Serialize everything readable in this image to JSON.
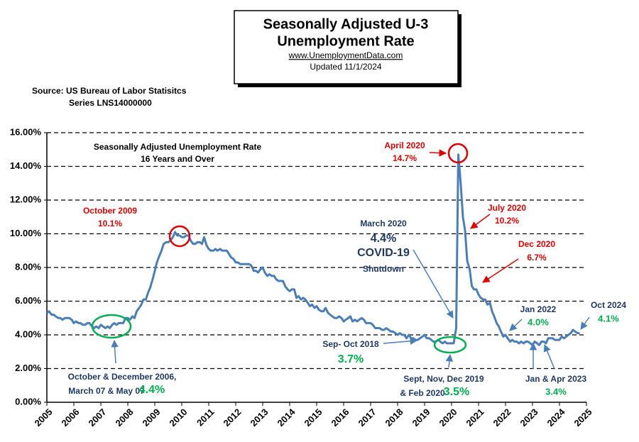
{
  "chart_data": {
    "type": "line",
    "title": [
      "Seasonally Adjusted U-3",
      "Unemployment Rate"
    ],
    "subtitle": [
      "www.UnemploymentData.com",
      "Updated  11/1/2024"
    ],
    "source": [
      "Source:  US  Bureau of Labor Statisitcs",
      "Series LNS14000000"
    ],
    "color": "#4a7ebb",
    "x": [
      2005,
      2005.08,
      2005.17,
      2005.25,
      2005.33,
      2005.42,
      2005.5,
      2005.58,
      2005.67,
      2005.75,
      2005.83,
      2005.92,
      2006,
      2006.08,
      2006.17,
      2006.25,
      2006.33,
      2006.42,
      2006.5,
      2006.58,
      2006.67,
      2006.75,
      2006.83,
      2006.92,
      2007,
      2007.08,
      2007.17,
      2007.25,
      2007.33,
      2007.42,
      2007.5,
      2007.58,
      2007.67,
      2007.75,
      2007.83,
      2007.92,
      2008,
      2008.08,
      2008.17,
      2008.25,
      2008.33,
      2008.42,
      2008.5,
      2008.58,
      2008.67,
      2008.75,
      2008.83,
      2008.92,
      2009,
      2009.08,
      2009.17,
      2009.25,
      2009.33,
      2009.42,
      2009.5,
      2009.58,
      2009.67,
      2009.75,
      2009.83,
      2009.92,
      2010,
      2010.08,
      2010.17,
      2010.25,
      2010.33,
      2010.42,
      2010.5,
      2010.58,
      2010.67,
      2010.75,
      2010.83,
      2010.92,
      2011,
      2011.08,
      2011.17,
      2011.25,
      2011.33,
      2011.42,
      2011.5,
      2011.58,
      2011.67,
      2011.75,
      2011.83,
      2011.92,
      2012,
      2012.08,
      2012.17,
      2012.25,
      2012.33,
      2012.42,
      2012.5,
      2012.58,
      2012.67,
      2012.75,
      2012.83,
      2012.92,
      2013,
      2013.08,
      2013.17,
      2013.25,
      2013.33,
      2013.42,
      2013.5,
      2013.58,
      2013.67,
      2013.75,
      2013.83,
      2013.92,
      2014,
      2014.08,
      2014.17,
      2014.25,
      2014.33,
      2014.42,
      2014.5,
      2014.58,
      2014.67,
      2014.75,
      2014.83,
      2014.92,
      2015,
      2015.08,
      2015.17,
      2015.25,
      2015.33,
      2015.42,
      2015.5,
      2015.58,
      2015.67,
      2015.75,
      2015.83,
      2015.92,
      2016,
      2016.08,
      2016.17,
      2016.25,
      2016.33,
      2016.42,
      2016.5,
      2016.58,
      2016.67,
      2016.75,
      2016.83,
      2016.92,
      2017,
      2017.08,
      2017.17,
      2017.25,
      2017.33,
      2017.42,
      2017.5,
      2017.58,
      2017.67,
      2017.75,
      2017.83,
      2017.92,
      2018,
      2018.08,
      2018.17,
      2018.25,
      2018.33,
      2018.42,
      2018.5,
      2018.58,
      2018.67,
      2018.75,
      2018.83,
      2018.92,
      2019,
      2019.08,
      2019.17,
      2019.25,
      2019.33,
      2019.42,
      2019.5,
      2019.58,
      2019.67,
      2019.75,
      2019.83,
      2019.92,
      2020,
      2020.08,
      2020.17,
      2020.25,
      2020.33,
      2020.42,
      2020.5,
      2020.58,
      2020.67,
      2020.75,
      2020.83,
      2020.92,
      2021,
      2021.08,
      2021.17,
      2021.25,
      2021.33,
      2021.42,
      2021.5,
      2021.58,
      2021.67,
      2021.75,
      2021.83,
      2021.92,
      2022,
      2022.08,
      2022.17,
      2022.25,
      2022.33,
      2022.42,
      2022.5,
      2022.58,
      2022.67,
      2022.75,
      2022.83,
      2022.92,
      2023,
      2023.08,
      2023.17,
      2023.25,
      2023.33,
      2023.42,
      2023.5,
      2023.58,
      2023.67,
      2023.75,
      2023.83,
      2023.92,
      2024,
      2024.08,
      2024.17,
      2024.25,
      2024.33,
      2024.42,
      2024.5,
      2024.58,
      2024.67,
      2024.75
    ],
    "values": [
      5.3,
      5.4,
      5.2,
      5.2,
      5.1,
      5.0,
      5.0,
      4.9,
      5.0,
      5.0,
      5.0,
      4.9,
      4.7,
      4.8,
      4.7,
      4.7,
      4.6,
      4.6,
      4.7,
      4.7,
      4.5,
      4.4,
      4.5,
      4.4,
      4.6,
      4.5,
      4.4,
      4.5,
      4.4,
      4.6,
      4.7,
      4.6,
      4.7,
      4.7,
      4.7,
      5.0,
      5.0,
      4.9,
      5.1,
      5.0,
      5.4,
      5.6,
      5.8,
      6.1,
      6.1,
      6.5,
      6.8,
      7.3,
      7.8,
      8.3,
      8.7,
      9.0,
      9.4,
      9.5,
      9.5,
      9.6,
      9.8,
      10.1,
      9.9,
      9.9,
      9.8,
      9.8,
      9.9,
      9.9,
      9.6,
      9.4,
      9.4,
      9.5,
      9.5,
      9.4,
      9.8,
      9.3,
      9.1,
      9.0,
      9.0,
      9.1,
      9.0,
      9.1,
      9.0,
      9.0,
      9.0,
      8.8,
      8.6,
      8.5,
      8.3,
      8.3,
      8.2,
      8.2,
      8.2,
      8.2,
      8.2,
      8.1,
      7.8,
      7.8,
      7.7,
      7.9,
      8.0,
      7.7,
      7.5,
      7.6,
      7.5,
      7.5,
      7.3,
      7.2,
      7.2,
      7.2,
      6.9,
      6.7,
      6.6,
      6.7,
      6.7,
      6.2,
      6.3,
      6.1,
      6.2,
      6.1,
      5.9,
      5.7,
      5.8,
      5.6,
      5.7,
      5.5,
      5.4,
      5.4,
      5.6,
      5.3,
      5.2,
      5.1,
      5.0,
      5.0,
      5.1,
      5.0,
      4.8,
      4.9,
      5.0,
      5.1,
      4.8,
      4.9,
      4.8,
      4.9,
      5.0,
      4.9,
      4.7,
      4.7,
      4.7,
      4.6,
      4.4,
      4.4,
      4.4,
      4.3,
      4.3,
      4.4,
      4.3,
      4.2,
      4.2,
      4.1,
      4.0,
      4.1,
      4.0,
      4.0,
      3.8,
      4.0,
      3.8,
      3.8,
      3.7,
      3.7,
      3.8,
      3.9,
      4.0,
      3.8,
      3.8,
      3.7,
      3.6,
      3.6,
      3.7,
      3.6,
      3.5,
      3.6,
      3.5,
      3.5,
      3.5,
      3.5,
      4.4,
      14.7,
      13.2,
      11.0,
      10.2,
      8.4,
      7.9,
      6.9,
      6.7,
      6.7,
      6.4,
      6.2,
      6.1,
      6.1,
      5.8,
      5.9,
      5.4,
      5.1,
      4.7,
      4.5,
      4.2,
      3.9,
      4.0,
      3.8,
      3.6,
      3.7,
      3.6,
      3.6,
      3.5,
      3.6,
      3.5,
      3.6,
      3.6,
      3.5,
      3.4,
      3.6,
      3.5,
      3.4,
      3.6,
      3.6,
      3.5,
      3.8,
      3.8,
      3.8,
      3.7,
      3.7,
      3.7,
      3.9,
      3.8,
      3.9,
      4.0,
      4.1,
      4.3,
      4.2,
      4.1,
      4.1
    ],
    "xlim": [
      2005,
      2025
    ],
    "xticks": [
      2005,
      2006,
      2007,
      2008,
      2009,
      2010,
      2011,
      2012,
      2013,
      2014,
      2015,
      2016,
      2017,
      2018,
      2019,
      2020,
      2021,
      2022,
      2023,
      2024,
      2025
    ],
    "ylim": [
      0,
      16
    ],
    "yticks": [
      {
        "value": 0,
        "label": "0.00%"
      },
      {
        "value": 2,
        "label": "2.00%"
      },
      {
        "value": 4,
        "label": "4.00%"
      },
      {
        "value": 6,
        "label": "6.00%"
      },
      {
        "value": 8,
        "label": "8.00%"
      },
      {
        "value": 10,
        "label": "10.00%"
      },
      {
        "value": 12,
        "label": "12.00%"
      },
      {
        "value": 14,
        "label": "14.00%"
      },
      {
        "value": 16,
        "label": "16.00%"
      }
    ],
    "grid": true,
    "annotations": [
      {
        "text": "Seasonally Adjusted Unemployment Rate",
        "color": "#000000"
      },
      {
        "text": "16 Years and Over",
        "color": "#000000"
      },
      {
        "text": "October 2009",
        "color": "#e00000"
      },
      {
        "text": "10.1%",
        "color": "#e00000"
      },
      {
        "text": "April 2020",
        "color": "#e00000"
      },
      {
        "text": "14.7%",
        "color": "#e00000"
      },
      {
        "text": "July 2020",
        "color": "#e00000"
      },
      {
        "text": "10.2%",
        "color": "#e00000"
      },
      {
        "text": "Dec 2020",
        "color": "#e00000"
      },
      {
        "text": "6.7%",
        "color": "#e00000"
      },
      {
        "text": "March 2020",
        "color": "#1f3864"
      },
      {
        "text": "4.4%",
        "color": "#1f3864"
      },
      {
        "text": "COVID-19",
        "color": "#1f3864"
      },
      {
        "text": "Shutdown",
        "color": "#1f3864"
      },
      {
        "text": "Jan 2022",
        "color": "#1f3864"
      },
      {
        "text": "4.0%",
        "color": "#00b050"
      },
      {
        "text": "Oct 2024",
        "color": "#1f3864"
      },
      {
        "text": "4.1%",
        "color": "#00b050"
      },
      {
        "text": "Sep- Oct 2018",
        "color": "#1f3864"
      },
      {
        "text": "3.7%",
        "color": "#00b050"
      },
      {
        "text": "October & December 2006,",
        "color": "#1f3864"
      },
      {
        "text": "March 07 & May 07",
        "color": "#1f3864"
      },
      {
        "text": "4.4%",
        "color": "#00b050"
      },
      {
        "text": "Sept, Nov, Dec 2019",
        "color": "#1f3864"
      },
      {
        "text": "& Feb 2020",
        "color": "#1f3864"
      },
      {
        "text": "3.5%",
        "color": "#00b050"
      },
      {
        "text": "Jan & Apr 2023",
        "color": "#1f3864"
      },
      {
        "text": "3.4%",
        "color": "#00b050"
      }
    ]
  }
}
